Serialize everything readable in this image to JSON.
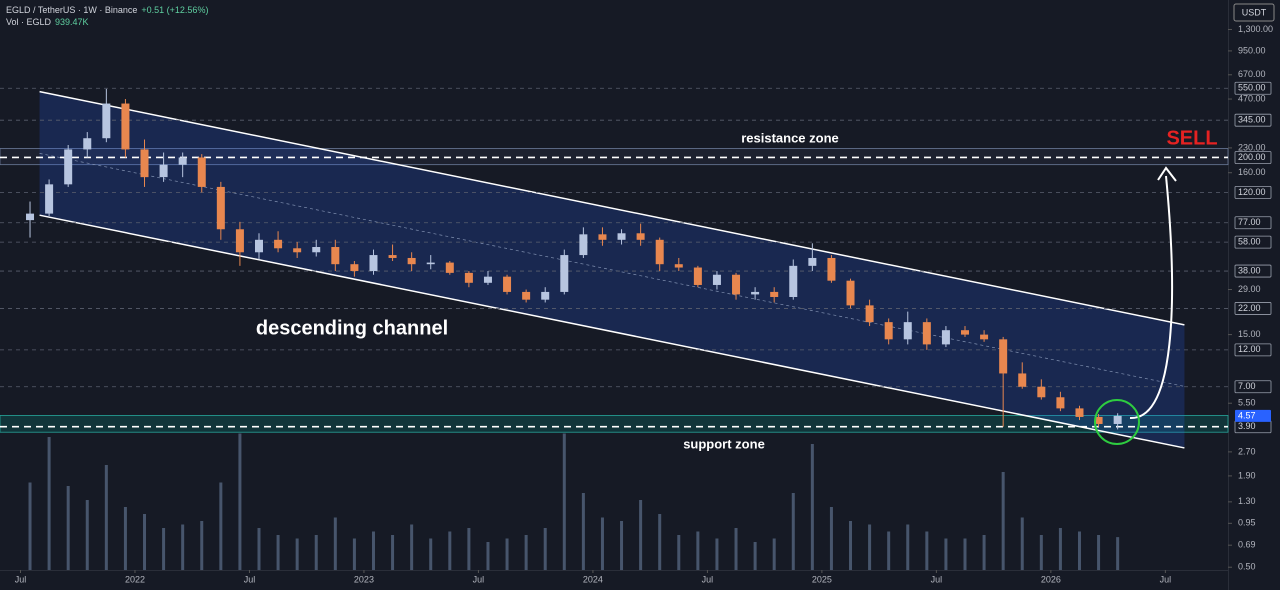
{
  "chart_data": {
    "type": "candlestick",
    "title": "EGLD / TetherUS · 1W · Binance",
    "change": "+0.51 (+12.56%)",
    "volume_title": "Vol · EGLD",
    "volume_label": "939.47K",
    "currency": "USDT",
    "log_scale": true,
    "up_color": "#b7c5e0",
    "down_color": "#e8874f",
    "volume_color": "#5d6f8a",
    "x": [
      "2021-07",
      "2021-08",
      "2021-09",
      "2021-10",
      "2021-11",
      "2021-12",
      "2022-01",
      "2022-02",
      "2022-03",
      "2022-04",
      "2022-05",
      "2022-06",
      "2022-07",
      "2022-08",
      "2022-09",
      "2022-10",
      "2022-11",
      "2022-12",
      "2023-01",
      "2023-02",
      "2023-03",
      "2023-04",
      "2023-05",
      "2023-06",
      "2023-07",
      "2023-08",
      "2023-09",
      "2023-10",
      "2023-11",
      "2023-12",
      "2024-01",
      "2024-02",
      "2024-03",
      "2024-04",
      "2024-05",
      "2024-06",
      "2024-07",
      "2024-08",
      "2024-09",
      "2024-10",
      "2024-11",
      "2024-12",
      "2025-01",
      "2025-02",
      "2025-03",
      "2025-04",
      "2025-05",
      "2025-06",
      "2025-07",
      "2025-08",
      "2025-09",
      "2025-10",
      "2025-11",
      "2025-12",
      "2026-01",
      "2026-02",
      "2026-03",
      "2026-04"
    ],
    "open": [
      80,
      88,
      135,
      225,
      265,
      440,
      225,
      150,
      180,
      200,
      130,
      70,
      50,
      60,
      53,
      50,
      54,
      42,
      38,
      48,
      46,
      42,
      43,
      37,
      32,
      35,
      28,
      25,
      28,
      48,
      65,
      60,
      66,
      60,
      42,
      40,
      31,
      36,
      27,
      28,
      26,
      41,
      46,
      33,
      23,
      18,
      14,
      18,
      13,
      16,
      15,
      14,
      8.5,
      7,
      6,
      5.1,
      4.5,
      4.06
    ],
    "high": [
      105,
      145,
      240,
      290,
      545,
      470,
      260,
      215,
      215,
      210,
      140,
      78,
      66,
      68,
      58,
      60,
      60,
      44,
      52,
      56,
      50,
      48,
      44,
      38,
      38,
      36,
      29,
      30,
      52,
      72,
      72,
      70,
      76,
      62,
      46,
      41,
      38,
      37,
      30,
      30,
      45,
      57,
      48,
      34,
      25,
      19,
      21,
      19,
      17,
      17,
      16,
      14.5,
      10,
      7.8,
      6.5,
      5.3,
      4.7,
      4.75
    ],
    "low": [
      62,
      85,
      130,
      200,
      250,
      200,
      130,
      140,
      150,
      120,
      60,
      41,
      45,
      50,
      46,
      47,
      38,
      35,
      36,
      44,
      38,
      39,
      36,
      30,
      31,
      27,
      24,
      24,
      27,
      46,
      55,
      56,
      55,
      38,
      38,
      30,
      29,
      25,
      25,
      24,
      25,
      38,
      32,
      22,
      17,
      13,
      13,
      12,
      12.5,
      14.5,
      13.5,
      3.9,
      6.8,
      5.8,
      4.9,
      4.3,
      3.9,
      3.75
    ],
    "close": [
      88,
      135,
      225,
      265,
      440,
      225,
      150,
      180,
      200,
      130,
      70,
      50,
      60,
      53,
      50,
      54,
      42,
      38,
      48,
      46,
      42,
      43,
      37,
      32,
      35,
      28,
      25,
      28,
      48,
      65,
      60,
      66,
      60,
      42,
      40,
      31,
      36,
      27,
      28,
      26,
      41,
      46,
      33,
      23,
      18,
      14,
      18,
      13,
      16,
      15,
      14,
      8.5,
      7,
      6,
      5.1,
      4.5,
      4.06,
      4.57
    ],
    "volume": [
      2500000,
      3800000,
      2400000,
      2000000,
      3000000,
      1800000,
      1600000,
      1200000,
      1300000,
      1400000,
      2500000,
      3900000,
      1200000,
      1000000,
      900000,
      1000000,
      1500000,
      900000,
      1100000,
      1000000,
      1300000,
      900000,
      1100000,
      1200000,
      800000,
      900000,
      1000000,
      1200000,
      3900000,
      2200000,
      1500000,
      1400000,
      2000000,
      1600000,
      1000000,
      1100000,
      900000,
      1200000,
      800000,
      900000,
      2200000,
      3600000,
      1800000,
      1400000,
      1300000,
      1100000,
      1300000,
      1100000,
      900000,
      900000,
      1000000,
      2800000,
      1500000,
      1000000,
      1200000,
      1100000,
      1000000,
      939470
    ],
    "volume_lim": [
      0,
      4000000
    ],
    "last_price_label": "4.57",
    "xlim": [
      "2021-06",
      "2026-10"
    ],
    "xticks": [
      {
        "value": "2021-07",
        "label": "Jul"
      },
      {
        "value": "2022-01",
        "label": "2022"
      },
      {
        "value": "2022-07",
        "label": "Jul"
      },
      {
        "value": "2023-01",
        "label": "2023"
      },
      {
        "value": "2023-07",
        "label": "Jul"
      },
      {
        "value": "2024-01",
        "label": "2024"
      },
      {
        "value": "2024-07",
        "label": "Jul"
      },
      {
        "value": "2025-01",
        "label": "2025"
      },
      {
        "value": "2025-07",
        "label": "Jul"
      },
      {
        "value": "2026-01",
        "label": "2026"
      },
      {
        "value": "2026-07",
        "label": "Jul"
      }
    ],
    "ylim": [
      0.48,
      2000
    ],
    "yticks": [
      {
        "value": 1300,
        "label": "1,300.00"
      },
      {
        "value": 950,
        "label": "950.00"
      },
      {
        "value": 670,
        "label": "670.00"
      },
      {
        "value": 470,
        "label": "470.00"
      },
      {
        "value": 230,
        "label": "230.00"
      },
      {
        "value": 160,
        "label": "160.00"
      },
      {
        "value": 29,
        "label": "29.00"
      },
      {
        "value": 15,
        "label": "15.00"
      },
      {
        "value": 5.5,
        "label": "5.50"
      },
      {
        "value": 2.7,
        "label": "2.70"
      },
      {
        "value": 1.9,
        "label": "1.90"
      },
      {
        "value": 1.3,
        "label": "1.30"
      },
      {
        "value": 0.95,
        "label": "0.95"
      },
      {
        "value": 0.69,
        "label": "0.69"
      },
      {
        "value": 0.5,
        "label": "0.50"
      }
    ],
    "levels": [
      {
        "value": 550,
        "label": "550.00"
      },
      {
        "value": 345,
        "label": "345.00"
      },
      {
        "value": 200,
        "label": "200.00"
      },
      {
        "value": 120,
        "label": "120.00"
      },
      {
        "value": 77,
        "label": "77.00"
      },
      {
        "value": 58,
        "label": "58.00"
      },
      {
        "value": 38,
        "label": "38.00"
      },
      {
        "value": 22,
        "label": "22.00"
      },
      {
        "value": 12,
        "label": "12.00"
      },
      {
        "value": 7,
        "label": "7.00"
      },
      {
        "value": 3.9,
        "label": "3.90"
      }
    ],
    "zones": [
      {
        "label": "resistance zone",
        "from": 180,
        "to": 228
      },
      {
        "label": "support zone",
        "from": 3.6,
        "to": 4.6
      }
    ],
    "channel": {
      "label": "descending channel",
      "upper": [
        {
          "x": "2021-08",
          "y": 524
        },
        {
          "x": "2026-08",
          "y": 17.3
        }
      ],
      "lower": [
        {
          "x": "2021-08",
          "y": 86
        },
        {
          "x": "2026-08",
          "y": 2.86
        }
      ]
    },
    "signal": "SELL"
  }
}
